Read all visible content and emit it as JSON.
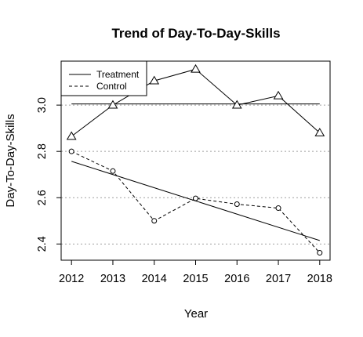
{
  "chart_data": {
    "type": "line",
    "title": "Trend of Day-To-Day-Skills",
    "xlabel": "Year",
    "ylabel": "Day-To-Day-Skills",
    "x": [
      2012,
      2013,
      2014,
      2015,
      2016,
      2017,
      2018
    ],
    "x_ticks": [
      "2012",
      "2013",
      "2014",
      "2015",
      "2016",
      "2017",
      "2018"
    ],
    "y_ticks": [
      "2.4",
      "2.6",
      "2.8",
      "3.0"
    ],
    "xlim": [
      2011.75,
      2018.25
    ],
    "ylim": [
      2.33,
      3.19
    ],
    "grid": "horizontal dotted at y ticks",
    "legend_position": "top-left",
    "series": [
      {
        "name": "Treatment",
        "line_style": "solid",
        "marker": "triangle",
        "values": [
          2.865,
          3.0,
          3.105,
          3.155,
          3.0,
          3.04,
          2.88
        ],
        "trend": [
          3.005,
          3.005
        ]
      },
      {
        "name": "Control",
        "line_style": "dashed",
        "marker": "circle",
        "values": [
          2.8,
          2.715,
          2.5,
          2.597,
          2.572,
          2.555,
          2.362
        ],
        "trend": [
          2.757,
          2.415
        ]
      }
    ],
    "colors": {
      "line": "#000000",
      "grid": "#a0a0a0",
      "background": "#ffffff"
    }
  }
}
